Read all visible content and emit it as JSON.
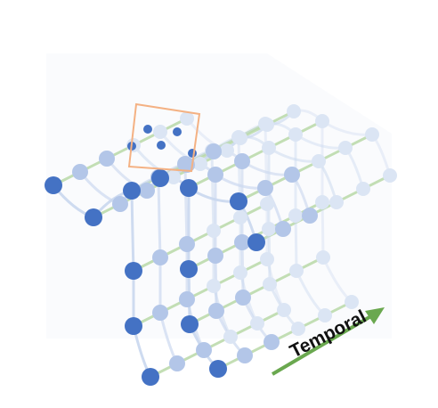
{
  "diagram": {
    "axis_label": "Temporal",
    "colors": {
      "node_dark": "#4472c4",
      "node_mid": "#b3c6e8",
      "node_light": "#dbe5f4",
      "spatial_edge": "#c9d7ee",
      "temporal_edge": "#b9d9a8",
      "arrow": "#6aa84f",
      "highlight_box": "#f4b183"
    }
  }
}
